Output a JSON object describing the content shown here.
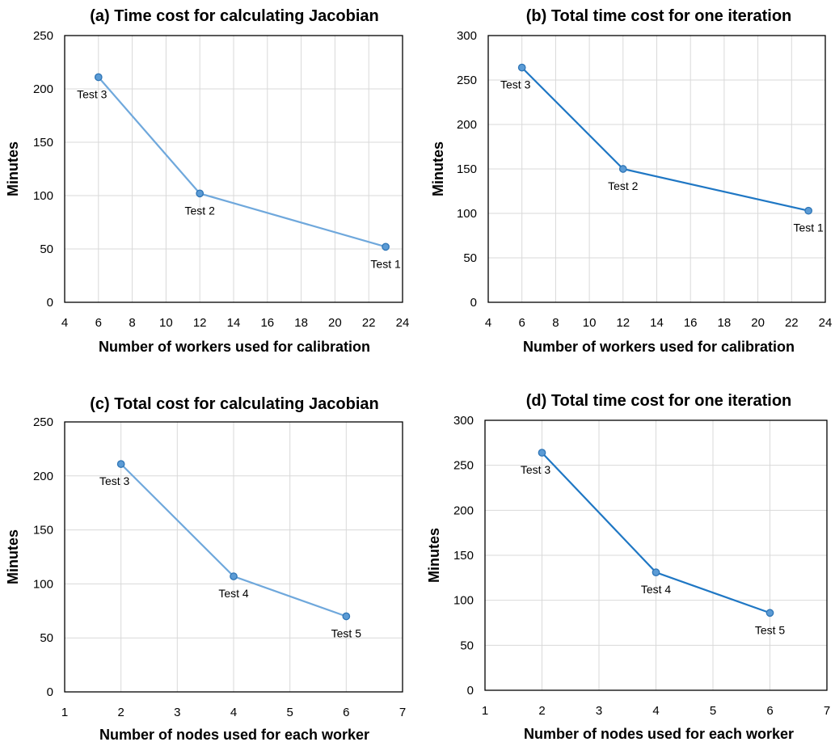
{
  "chart_data": [
    {
      "type": "line",
      "title": "(a) Time cost for calculating Jacobian",
      "xlabel": "Number of workers used for calibration",
      "ylabel": "Minutes",
      "xlim": [
        4,
        24
      ],
      "xticks": [
        4,
        6,
        8,
        10,
        12,
        14,
        16,
        18,
        20,
        22,
        24
      ],
      "ylim": [
        0,
        250
      ],
      "yticks": [
        0,
        50,
        100,
        150,
        200,
        250
      ],
      "grid": true,
      "line_color": "#6fa8dc",
      "series": [
        {
          "points": [
            {
              "x": 6,
              "y": 211,
              "label": "Test 3"
            },
            {
              "x": 12,
              "y": 102,
              "label": "Test 2"
            },
            {
              "x": 23,
              "y": 52,
              "label": "Test 1"
            }
          ]
        }
      ]
    },
    {
      "type": "line",
      "title": "(b) Total time cost for one iteration",
      "xlabel": "Number of workers used for calibration",
      "ylabel": "Minutes",
      "xlim": [
        4,
        24
      ],
      "xticks": [
        4,
        6,
        8,
        10,
        12,
        14,
        16,
        18,
        20,
        22,
        24
      ],
      "ylim": [
        0,
        300
      ],
      "yticks": [
        0,
        50,
        100,
        150,
        200,
        250,
        300
      ],
      "grid": true,
      "line_color": "#1f77c4",
      "series": [
        {
          "points": [
            {
              "x": 6,
              "y": 264,
              "label": "Test 3"
            },
            {
              "x": 12,
              "y": 150,
              "label": "Test 2"
            },
            {
              "x": 23,
              "y": 103,
              "label": "Test 1"
            }
          ]
        }
      ]
    },
    {
      "type": "line",
      "title": "(c) Total cost for calculating Jacobian",
      "xlabel": "Number of nodes used for each worker",
      "ylabel": "Minutes",
      "xlim": [
        1,
        7
      ],
      "xticks": [
        1,
        2,
        3,
        4,
        5,
        6,
        7
      ],
      "ylim": [
        0,
        250
      ],
      "yticks": [
        0,
        50,
        100,
        150,
        200,
        250
      ],
      "grid": true,
      "line_color": "#6fa8dc",
      "series": [
        {
          "points": [
            {
              "x": 2,
              "y": 211,
              "label": "Test 3"
            },
            {
              "x": 4,
              "y": 107,
              "label": "Test 4"
            },
            {
              "x": 6,
              "y": 70,
              "label": "Test 5"
            }
          ]
        }
      ]
    },
    {
      "type": "line",
      "title": "(d) Total time cost for one iteration",
      "xlabel": "Number of nodes used for each worker",
      "ylabel": "Minutes",
      "xlim": [
        1,
        7
      ],
      "xticks": [
        1,
        2,
        3,
        4,
        5,
        6,
        7
      ],
      "ylim": [
        0,
        300
      ],
      "yticks": [
        0,
        50,
        100,
        150,
        200,
        250,
        300
      ],
      "grid": true,
      "line_color": "#1f77c4",
      "series": [
        {
          "points": [
            {
              "x": 2,
              "y": 264,
              "label": "Test 3"
            },
            {
              "x": 4,
              "y": 131,
              "label": "Test 4"
            },
            {
              "x": 6,
              "y": 86,
              "label": "Test 5"
            }
          ]
        }
      ]
    }
  ]
}
